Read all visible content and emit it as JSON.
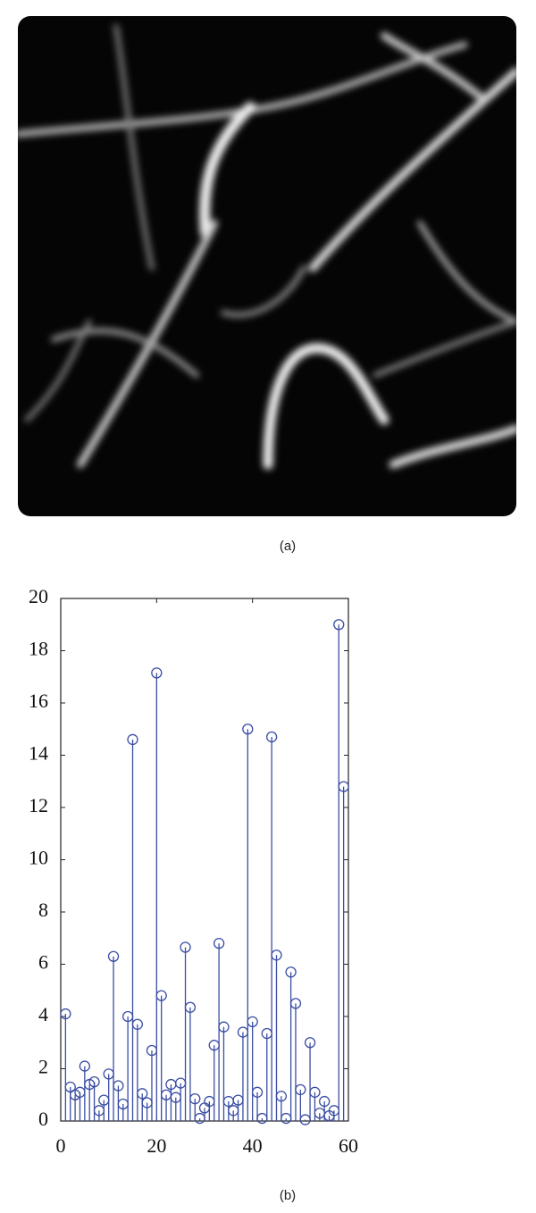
{
  "figure_a": {
    "caption": "(a)"
  },
  "chart_data": {
    "type": "stem",
    "caption": "(b)",
    "color": "#3b4ea3",
    "x": [
      1,
      2,
      3,
      4,
      5,
      6,
      7,
      8,
      9,
      10,
      11,
      12,
      13,
      14,
      15,
      16,
      17,
      18,
      19,
      20,
      21,
      22,
      23,
      24,
      25,
      26,
      27,
      28,
      29,
      30,
      31,
      32,
      33,
      34,
      35,
      36,
      37,
      38,
      39,
      40,
      41,
      42,
      43,
      44,
      45,
      46,
      47,
      48,
      49,
      50,
      51,
      52,
      53,
      54,
      55,
      56,
      57,
      58,
      59
    ],
    "values": [
      4.1,
      1.3,
      1.0,
      1.1,
      2.1,
      1.4,
      1.5,
      0.4,
      0.8,
      1.8,
      6.3,
      1.35,
      0.65,
      4.0,
      14.6,
      3.7,
      1.05,
      0.7,
      2.7,
      17.15,
      4.8,
      1.0,
      1.4,
      0.9,
      1.45,
      6.65,
      4.35,
      0.85,
      0.1,
      0.5,
      0.75,
      2.9,
      6.8,
      3.6,
      0.75,
      0.4,
      0.8,
      3.4,
      15.0,
      3.8,
      1.1,
      0.1,
      3.35,
      14.7,
      6.35,
      0.95,
      0.1,
      5.7,
      4.5,
      1.2,
      0.05,
      3.0,
      1.1,
      0.3,
      0.75,
      0.2,
      0.4,
      19.0,
      12.8
    ],
    "xlim": [
      0,
      60
    ],
    "xticks": [
      0,
      20,
      40,
      60
    ],
    "ylim": [
      0,
      20
    ],
    "yticks": [
      0,
      2,
      4,
      6,
      8,
      10,
      12,
      14,
      16,
      18,
      20
    ]
  }
}
